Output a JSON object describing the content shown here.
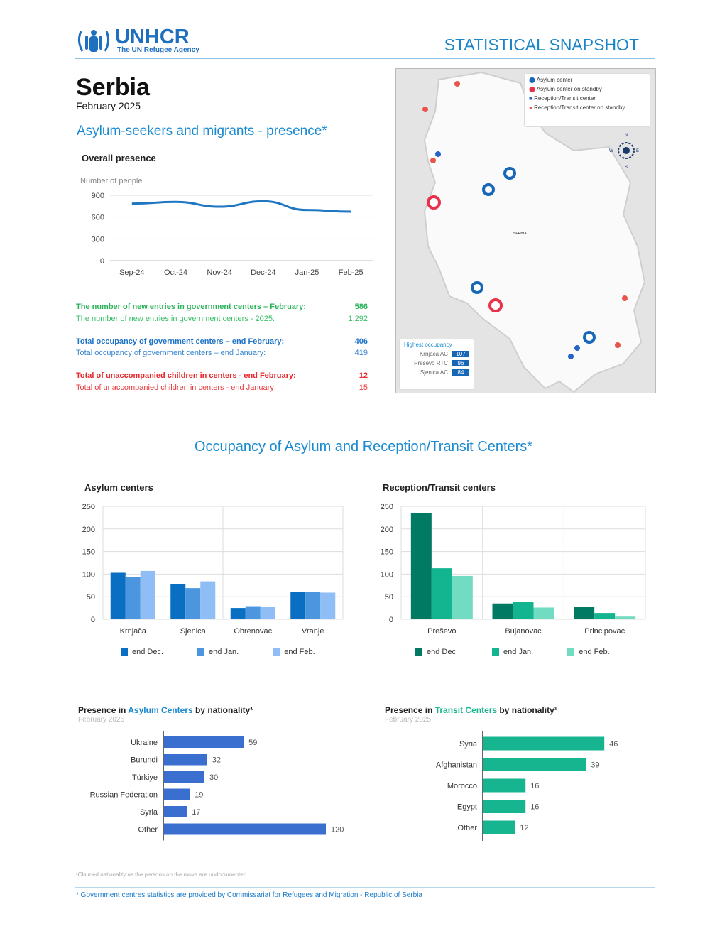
{
  "header": {
    "logo_name": "UNHCR",
    "logo_tagline": "The UN Refugee Agency",
    "doc_type": "STATISTICAL SNAPSHOT"
  },
  "country": "Serbia",
  "date": "February 2025",
  "section1_title": "Asylum-seekers and migrants - presence*",
  "stats": [
    {
      "label": "The number of new entries in government centers – February:",
      "value": "586",
      "color": "#2bb35a",
      "bold": true
    },
    {
      "label": "The number of new entries in government centers - 2025:",
      "value": "1,292",
      "color": "#3bbf6a",
      "bold": false
    },
    {
      "label": "Total occupancy of government centers – end February:",
      "value": "406",
      "color": "#1f73c6",
      "bold": true
    },
    {
      "label": "Total occupancy of government centers – end January:",
      "value": "419",
      "color": "#3a86d0",
      "bold": false
    },
    {
      "label": "Total of unaccompanied children in centers - end February:",
      "value": "12",
      "color": "#e8262b",
      "bold": true
    },
    {
      "label": "Total of unaccompanied children in centers - end January:",
      "value": "15",
      "color": "#ea3a3e",
      "bold": false
    }
  ],
  "map": {
    "legend": [
      "Asylum center",
      "Asylum center on standby",
      "Reception/Transit center",
      "Reception/Transit center on standby"
    ],
    "country_label": "SERBIA",
    "compass": {
      "n": "N",
      "s": "S",
      "e": "E",
      "w": "W"
    },
    "highest_title": "Highest occupancy",
    "highest": [
      {
        "name": "Krnjaca AC",
        "value": "107"
      },
      {
        "name": "Presevo RTC",
        "value": "96"
      },
      {
        "name": "Sjenica AC",
        "value": "84"
      }
    ]
  },
  "section2_title": "Occupancy of Asylum and Reception/Transit Centers*",
  "chart_data": [
    {
      "type": "line",
      "title": "Overall presence",
      "ylabel": "Number of people",
      "categories": [
        "Sep-24",
        "Oct-24",
        "Nov-24",
        "Dec-24",
        "Jan-25",
        "Feb-25"
      ],
      "values": [
        786,
        809,
        743,
        818,
        698,
        675
      ],
      "ylim": [
        0,
        900
      ],
      "yticks": [
        0,
        300,
        600,
        900
      ],
      "color": "#1f77c4"
    },
    {
      "type": "bar",
      "title": "Asylum centers",
      "categories": [
        "Krnjača",
        "Sjenica",
        "Obrenovac",
        "Vranje"
      ],
      "ylim": [
        0,
        250
      ],
      "yticks": [
        0,
        50,
        100,
        150,
        200,
        250
      ],
      "series": [
        {
          "name": "end Dec.",
          "values": [
            103,
            78,
            25,
            61
          ],
          "color": "#0a6fc2"
        },
        {
          "name": "end Jan.",
          "values": [
            94,
            69,
            29,
            60
          ],
          "color": "#4b96de"
        },
        {
          "name": "end Feb.",
          "values": [
            107,
            84,
            27,
            59
          ],
          "color": "#8fbdf5"
        }
      ]
    },
    {
      "type": "bar",
      "title": "Reception/Transit centers",
      "categories": [
        "Preševo",
        "Bujanovac",
        "Principovac"
      ],
      "ylim": [
        0,
        250
      ],
      "yticks": [
        0,
        50,
        100,
        150,
        200,
        250
      ],
      "series": [
        {
          "name": "end Dec.",
          "values": [
            235,
            35,
            27
          ],
          "color": "#007a63"
        },
        {
          "name": "end Jan.",
          "values": [
            113,
            38,
            14
          ],
          "color": "#12b58f"
        },
        {
          "name": "end Feb.",
          "values": [
            96,
            26,
            6
          ],
          "color": "#72dcc2"
        }
      ]
    },
    {
      "type": "bar",
      "orientation": "horizontal",
      "title_pre": "Presence in ",
      "title_hl": "Asylum Centers",
      "title_post": " by nationality¹",
      "subtitle": "February 2025",
      "color": "#3a6fd0",
      "hl_color": "#1a8ad0",
      "categories": [
        "Ukraine",
        "Burundi",
        "Türkiye",
        "Russian Federation",
        "Syria",
        "Other"
      ],
      "values": [
        59,
        32,
        30,
        19,
        17,
        120
      ]
    },
    {
      "type": "bar",
      "orientation": "horizontal",
      "title_pre": "Presence in ",
      "title_hl": "Transit Centers",
      "title_post": " by nationality¹",
      "subtitle": "February 2025",
      "color": "#17b58f",
      "hl_color": "#17b58f",
      "categories": [
        "Syria",
        "Afghanistan",
        "Morocco",
        "Egypt",
        "Other"
      ],
      "values": [
        46,
        39,
        16,
        16,
        12
      ]
    }
  ],
  "footnote": "¹Claimed nationality as the persons on the move are undocumented",
  "footer": "* Government centres statistics are provided by Commissariat for Refugees and Migration - Republic of Serbia"
}
